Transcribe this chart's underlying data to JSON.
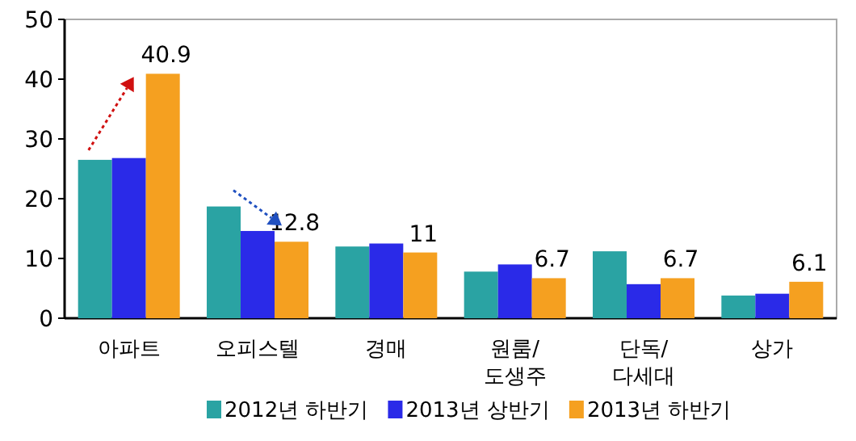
{
  "chart_data": {
    "type": "bar",
    "categories": [
      "아파트",
      "오피스텔",
      "경매",
      "원룸/\n도생주",
      "단독/\n다세대",
      "상가"
    ],
    "series": [
      {
        "name": "2012년 하반기",
        "color": "#2aa3a3",
        "values": [
          26.5,
          18.7,
          12,
          7.8,
          11.2,
          3.8
        ]
      },
      {
        "name": "2013년 상반기",
        "color": "#2a2ae8",
        "values": [
          26.8,
          14.6,
          12.5,
          9,
          5.7,
          4.1
        ]
      },
      {
        "name": "2013년 하반기",
        "color": "#f5a020",
        "values": [
          40.9,
          12.8,
          11,
          6.7,
          6.7,
          6.1
        ],
        "value_labels": [
          "40.9",
          "12.8",
          "11",
          "6.7",
          "6.7",
          "6.1"
        ]
      }
    ],
    "ylim": [
      0,
      50
    ],
    "yticks": [
      0,
      10,
      20,
      30,
      40,
      50
    ],
    "legend": "bottom"
  }
}
